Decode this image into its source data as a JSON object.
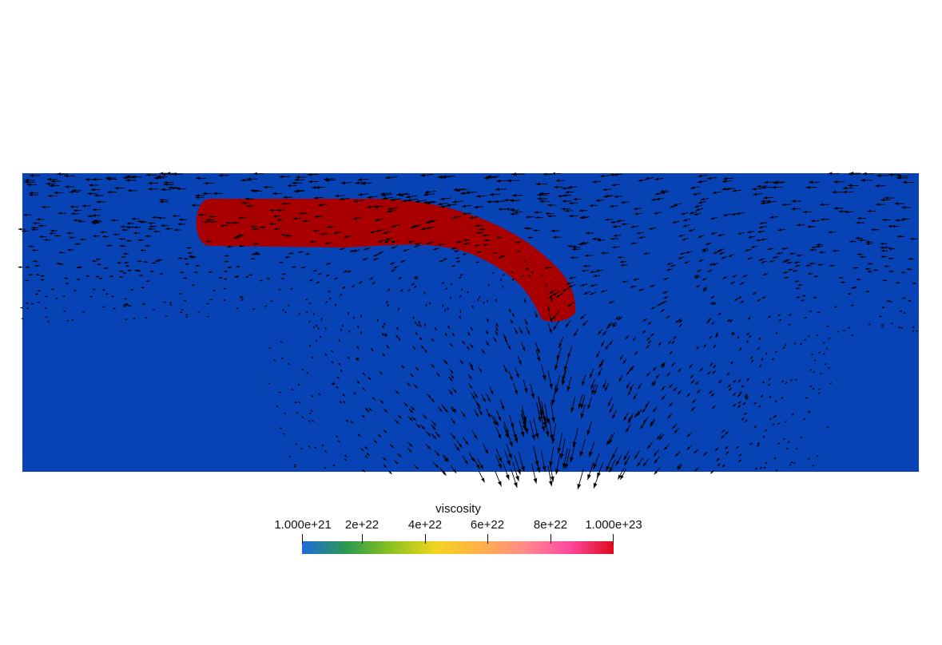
{
  "colorbar": {
    "title": "viscosity",
    "tick_labels": [
      "1.000e+21",
      "2e+22",
      "4e+22",
      "6e+22",
      "8e+22",
      "1.000e+23"
    ],
    "colors": [
      "#1f6bdc",
      "#2a9a4e",
      "#8dc21f",
      "#f2d41e",
      "#ffb24a",
      "#ff8a8a",
      "#ff4aa0",
      "#dd0a1a"
    ]
  },
  "scene": {
    "background_field_color": "#0843b5",
    "slab_color": "#a80000",
    "arrow_color": "#000000"
  }
}
